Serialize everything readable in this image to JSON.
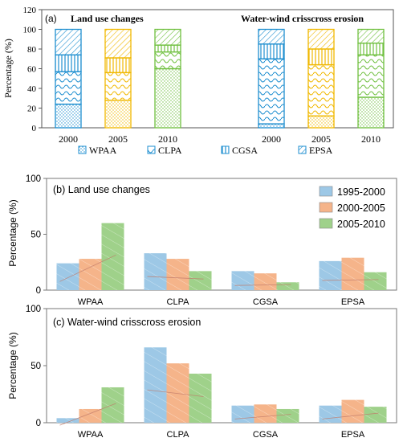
{
  "chart_data": [
    {
      "type": "bar",
      "stacked": true,
      "panel_label": "(a)",
      "ylabel": "Percentage (%)",
      "ylim": [
        0,
        120
      ],
      "yticks": [
        0,
        20,
        40,
        60,
        80,
        100,
        120
      ],
      "grid": false,
      "legend_position": "bottom",
      "colors": {
        "2000": "#1f8fd0",
        "2005": "#f0b800",
        "2010": "#70c040"
      },
      "groups": [
        {
          "title": "Land use changes",
          "categories": [
            "2000",
            "2005",
            "2010"
          ],
          "series": [
            {
              "name": "WPAA",
              "values": [
                24,
                28,
                60
              ]
            },
            {
              "name": "CLPA",
              "values": [
                33,
                28,
                17
              ]
            },
            {
              "name": "CGSA",
              "values": [
                17,
                15,
                7
              ]
            },
            {
              "name": "EPSA",
              "values": [
                26,
                29,
                16
              ]
            }
          ]
        },
        {
          "title": "Water-wind  crisscross erosion",
          "categories": [
            "2000",
            "2005",
            "2010"
          ],
          "series": [
            {
              "name": "WPAA",
              "values": [
                4,
                12,
                31
              ]
            },
            {
              "name": "CLPA",
              "values": [
                66,
                52,
                43
              ]
            },
            {
              "name": "CGSA",
              "values": [
                15,
                16,
                12
              ]
            },
            {
              "name": "EPSA",
              "values": [
                15,
                20,
                14
              ]
            }
          ]
        }
      ]
    },
    {
      "type": "bar",
      "title": "(b) Land use changes",
      "ylabel": "Percentage (%)",
      "ylim": [
        0,
        100
      ],
      "yticks": [
        0,
        50,
        100
      ],
      "grid": false,
      "legend_position": "top-right",
      "categories": [
        "WPAA",
        "CLPA",
        "CGSA",
        "EPSA"
      ],
      "series": [
        {
          "name": "1995-2000",
          "color": "#9dc8e6",
          "values": [
            24,
            33,
            17,
            26
          ]
        },
        {
          "name": "2000-2005",
          "color": "#f5b48a",
          "values": [
            28,
            28,
            15,
            29
          ]
        },
        {
          "name": "2005-2010",
          "color": "#9fd18a",
          "values": [
            60,
            17,
            7,
            16
          ]
        }
      ]
    },
    {
      "type": "bar",
      "title": "(c) Water-wind crisscross erosion",
      "ylabel": "Percentage (%)",
      "ylim": [
        0,
        100
      ],
      "yticks": [
        0,
        50,
        100
      ],
      "grid": false,
      "categories": [
        "WPAA",
        "CLPA",
        "CGSA",
        "EPSA"
      ],
      "series": [
        {
          "name": "1995-2000",
          "color": "#9dc8e6",
          "values": [
            4,
            66,
            15,
            15
          ]
        },
        {
          "name": "2000-2005",
          "color": "#f5b48a",
          "values": [
            12,
            52,
            16,
            20
          ]
        },
        {
          "name": "2005-2010",
          "color": "#9fd18a",
          "values": [
            31,
            43,
            12,
            14
          ]
        }
      ]
    }
  ]
}
